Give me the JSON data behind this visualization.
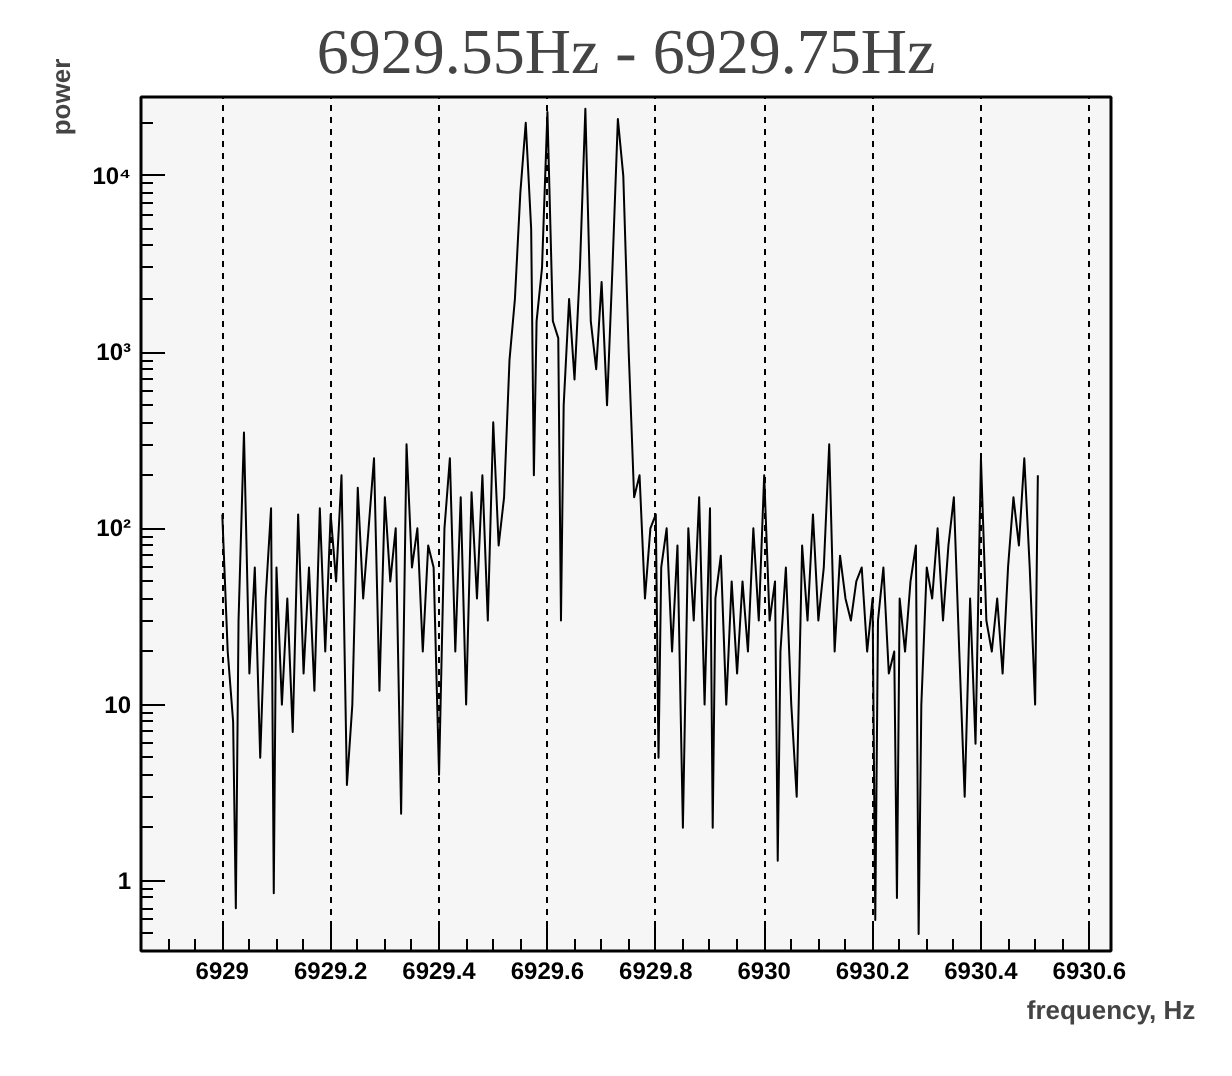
{
  "chart_data": {
    "type": "line",
    "title": "6929.55Hz - 6929.75Hz",
    "xlabel": "frequency, Hz",
    "ylabel": "power",
    "log": "y",
    "grid": "x",
    "line_style": "solid",
    "marker": "none",
    "xlim": [
      6928.85,
      6930.64
    ],
    "xticks": [
      6929,
      6929.2,
      6929.4,
      6929.6,
      6929.8,
      6930,
      6930.2,
      6930.4,
      6930.6
    ],
    "ylim": [
      0.4,
      28000
    ],
    "yticks": [
      1,
      10,
      {
        "value": 100,
        "label": "10²"
      },
      {
        "value": 1000,
        "label": "10³"
      },
      {
        "value": 10000,
        "label": "10⁴"
      }
    ],
    "series": [
      {
        "color": "#000000",
        "x": [
          6929.0,
          6929.01,
          6929.02,
          6929.025,
          6929.03,
          6929.04,
          6929.05,
          6929.06,
          6929.07,
          6929.08,
          6929.09,
          6929.095,
          6929.1,
          6929.11,
          6929.12,
          6929.13,
          6929.14,
          6929.15,
          6929.16,
          6929.17,
          6929.18,
          6929.19,
          6929.2,
          6929.21,
          6929.22,
          6929.23,
          6929.24,
          6929.25,
          6929.26,
          6929.27,
          6929.28,
          6929.29,
          6929.3,
          6929.31,
          6929.32,
          6929.33,
          6929.34,
          6929.35,
          6929.36,
          6929.37,
          6929.38,
          6929.39,
          6929.4,
          6929.41,
          6929.42,
          6929.43,
          6929.44,
          6929.45,
          6929.46,
          6929.47,
          6929.48,
          6929.49,
          6929.5,
          6929.51,
          6929.52,
          6929.53,
          6929.54,
          6929.55,
          6929.56,
          6929.57,
          6929.575,
          6929.58,
          6929.59,
          6929.6,
          6929.61,
          6929.62,
          6929.625,
          6929.63,
          6929.64,
          6929.65,
          6929.66,
          6929.67,
          6929.68,
          6929.69,
          6929.7,
          6929.71,
          6929.72,
          6929.73,
          6929.74,
          6929.75,
          6929.76,
          6929.77,
          6929.78,
          6929.79,
          6929.8,
          6929.805,
          6929.81,
          6929.82,
          6929.83,
          6929.84,
          6929.85,
          6929.86,
          6929.87,
          6929.88,
          6929.89,
          6929.9,
          6929.905,
          6929.91,
          6929.92,
          6929.93,
          6929.94,
          6929.95,
          6929.96,
          6929.97,
          6929.98,
          6929.99,
          6930.0,
          6930.01,
          6930.02,
          6930.025,
          6930.03,
          6930.04,
          6930.05,
          6930.06,
          6930.07,
          6930.08,
          6930.09,
          6930.1,
          6930.11,
          6930.12,
          6930.13,
          6930.14,
          6930.15,
          6930.16,
          6930.17,
          6930.18,
          6930.19,
          6930.2,
          6930.205,
          6930.21,
          6930.22,
          6930.23,
          6930.24,
          6930.245,
          6930.25,
          6930.26,
          6930.27,
          6930.28,
          6930.285,
          6930.29,
          6930.3,
          6930.31,
          6930.32,
          6930.33,
          6930.34,
          6930.35,
          6930.36,
          6930.37,
          6930.38,
          6930.39,
          6930.4,
          6930.41,
          6930.42,
          6930.43,
          6930.44,
          6930.45,
          6930.46,
          6930.47,
          6930.48,
          6930.49,
          6930.5,
          6930.505
        ],
        "values": [
          120,
          20,
          8,
          0.7,
          30,
          350,
          15,
          60,
          5,
          40,
          130,
          0.85,
          60,
          10,
          40,
          7,
          120,
          15,
          60,
          12,
          130,
          20,
          120,
          50,
          200,
          3.5,
          10,
          170,
          40,
          100,
          250,
          12,
          150,
          50,
          100,
          2.4,
          300,
          60,
          100,
          20,
          80,
          60,
          4,
          100,
          250,
          20,
          150,
          10,
          160,
          40,
          200,
          30,
          400,
          80,
          150,
          900,
          2000,
          8000,
          20000,
          5000,
          200,
          1500,
          3000,
          23000,
          1500,
          1200,
          30,
          500,
          2000,
          700,
          3000,
          24000,
          1500,
          800,
          2500,
          500,
          3000,
          21000,
          10000,
          1000,
          150,
          200,
          40,
          100,
          120,
          5,
          60,
          100,
          20,
          80,
          2,
          100,
          30,
          150,
          10,
          130,
          2,
          40,
          70,
          10,
          50,
          15,
          50,
          20,
          100,
          30,
          200,
          30,
          50,
          1.3,
          20,
          60,
          10,
          3,
          80,
          30,
          120,
          30,
          60,
          300,
          20,
          70,
          40,
          30,
          50,
          60,
          20,
          40,
          0.6,
          30,
          60,
          15,
          20,
          0.8,
          40,
          20,
          50,
          80,
          0.5,
          10,
          60,
          40,
          100,
          30,
          80,
          150,
          20,
          3,
          40,
          6,
          250,
          30,
          20,
          40,
          15,
          60,
          150,
          80,
          250,
          60,
          10,
          200
        ]
      }
    ]
  }
}
